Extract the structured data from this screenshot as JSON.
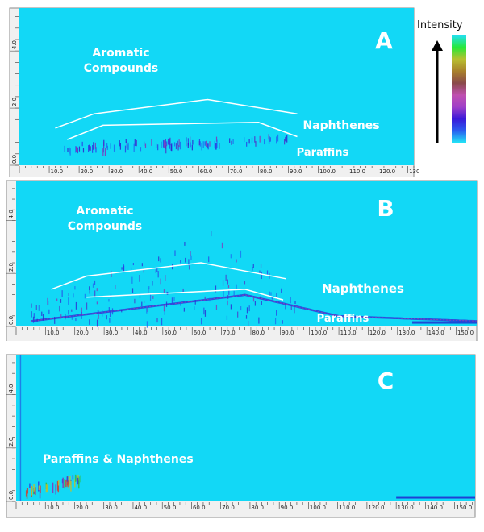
{
  "chart_data": [
    {
      "type": "heatmap",
      "panel": "A",
      "title": "A",
      "xlabel": "",
      "ylabel": "",
      "xlim": [
        0,
        132
      ],
      "ylim": [
        0,
        5.5
      ],
      "x_ticks": [
        "10.0",
        "20.0",
        "30.0",
        "40.0",
        "50.0",
        "60.0",
        "70.0",
        "80.0",
        "90.0",
        "100.0",
        "110.0",
        "120.0",
        "130."
      ],
      "y_ticks": [
        "0.0",
        "2.0",
        "4.0"
      ],
      "annotations": [
        {
          "text": "Aromatic Compounds",
          "lines": [
            "Aromatic",
            "Compounds"
          ]
        },
        {
          "text": "Naphthenes"
        },
        {
          "text": "Paraffins"
        }
      ],
      "boundary_lines": [
        {
          "name": "aromatic-naphthene-boundary",
          "points": [
            [
              12,
              1.3
            ],
            [
              25,
              1.8
            ],
            [
              63,
              2.3
            ],
            [
              93,
              1.8
            ]
          ]
        },
        {
          "name": "naphthene-paraffin-boundary",
          "points": [
            [
              16,
              0.9
            ],
            [
              28,
              1.4
            ],
            [
              80,
              1.5
            ],
            [
              93,
              1.0
            ]
          ]
        }
      ],
      "peak_band": {
        "x_start": 15,
        "x_end": 92,
        "y_center": 0.6
      }
    },
    {
      "type": "heatmap",
      "panel": "B",
      "title": "B",
      "xlabel": "",
      "ylabel": "",
      "xlim": [
        0,
        157
      ],
      "ylim": [
        0,
        5.5
      ],
      "x_ticks": [
        "10.0",
        "20.0",
        "30.0",
        "40.0",
        "50.0",
        "60.0",
        "70.0",
        "80.0",
        "90.0",
        "100.0",
        "110.0",
        "120.0",
        "130.0",
        "140.0",
        "150.0"
      ],
      "y_ticks": [
        "0.0",
        "2.0",
        "4.0"
      ],
      "annotations": [
        {
          "text": "Aromatic Compounds",
          "lines": [
            "Aromatic",
            "Compounds"
          ]
        },
        {
          "text": "Naphthenes"
        },
        {
          "text": "Paraffins"
        }
      ],
      "boundary_lines": [
        {
          "name": "aromatic-naphthene-boundary",
          "points": [
            [
              12,
              1.4
            ],
            [
              24,
              1.9
            ],
            [
              63,
              2.4
            ],
            [
              92,
              1.8
            ]
          ]
        },
        {
          "name": "naphthene-paraffin-boundary",
          "points": [
            [
              24,
              1.1
            ],
            [
              78,
              1.4
            ],
            [
              91,
              1.0
            ]
          ]
        }
      ],
      "peak_band": {
        "x_start": 5,
        "x_end": 157,
        "y_center": 1.0
      }
    },
    {
      "type": "heatmap",
      "panel": "C",
      "title": "C",
      "xlabel": "",
      "ylabel": "",
      "xlim": [
        0,
        157
      ],
      "ylim": [
        0,
        5.5
      ],
      "x_ticks": [
        "10.0",
        "20.0",
        "30.0",
        "40.0",
        "50.0",
        "60.0",
        "70.0",
        "80.0",
        "90.0",
        "100.0",
        "110.0",
        "120.0",
        "130.0",
        "140.0",
        "150.0"
      ],
      "y_ticks": [
        "0.0",
        "2.0",
        "4.0"
      ],
      "annotations": [
        {
          "text": "Paraffins & Naphthenes"
        }
      ],
      "peak_band": {
        "x_start": 3,
        "x_end": 22,
        "y_center": 0.5
      }
    }
  ],
  "legend": {
    "title": "Intensity",
    "colors": [
      "#22e4f6",
      "#2a5ef0",
      "#3a18d8",
      "#a040c8",
      "#c050b0",
      "#8a4a4a",
      "#a8802c",
      "#b8c030",
      "#28e838",
      "#22e0f0"
    ]
  },
  "colors": {
    "background": "#12d8f6",
    "frame": "#8a8a8a",
    "axis_bg": "#f0f0f0"
  }
}
